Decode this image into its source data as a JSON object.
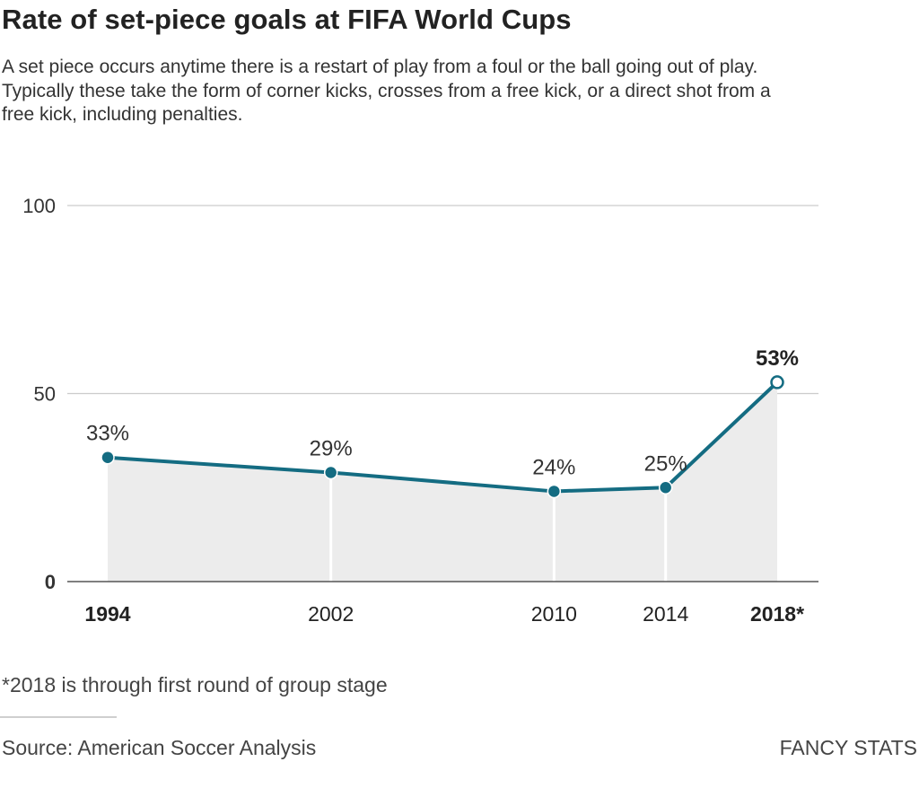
{
  "title": "Rate of set-piece goals at FIFA World Cups",
  "subtitle": "A set piece occurs anytime there is a restart of play from a foul or the ball going out of play. Typically these take the form of corner kicks, crosses from a free kick, or a direct shot from a free kick, including penalties.",
  "footnote": "*2018 is through first round of group stage",
  "source": "Source: American Soccer Analysis",
  "credit": "FANCY STATS",
  "colors": {
    "line": "#146c82",
    "area": "#ececec",
    "grid": "#cccccc",
    "text": "#333333"
  },
  "chart_data": {
    "type": "line",
    "x": [
      1994,
      2002,
      2010,
      2014,
      2018
    ],
    "x_tick_labels": [
      "1994",
      "2002",
      "2010",
      "2014",
      "2018*"
    ],
    "x_tick_bold": [
      true,
      false,
      false,
      false,
      true
    ],
    "y": [
      33,
      29,
      24,
      25,
      53
    ],
    "data_labels": [
      "33%",
      "29%",
      "24%",
      "25%",
      "53%"
    ],
    "highlight_last": true,
    "ylim": [
      0,
      100
    ],
    "y_ticks": [
      0,
      50,
      100
    ],
    "y_tick_labels": [
      "0",
      "50",
      "100"
    ],
    "area_fill": true,
    "grid": true,
    "xlabel": "",
    "ylabel": ""
  }
}
